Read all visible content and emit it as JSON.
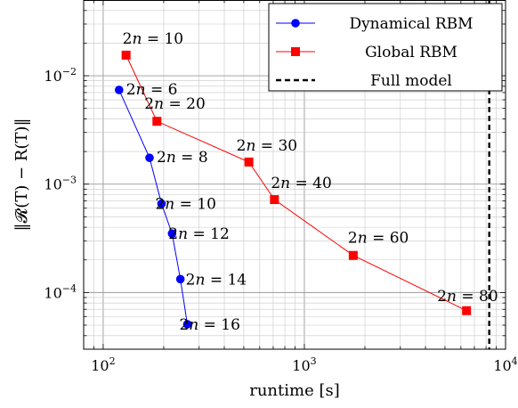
{
  "chart_data": {
    "type": "line",
    "x_scale": "log",
    "y_scale": "log",
    "xlim": [
      80,
      10000
    ],
    "ylim": [
      3e-05,
      0.05
    ],
    "grid": true,
    "legend_position": "top-right",
    "xlabel": "runtime [s]",
    "ylabel": "‖𝓡(T) − R(T)‖",
    "x_tick_labels": [
      "10^2",
      "10^3",
      "10^4"
    ],
    "y_tick_labels": [
      "10^-2",
      "10^-3",
      "10^-4"
    ],
    "series": [
      {
        "name": "Dynamical RBM",
        "color": "#0000ff",
        "marker": "circle",
        "points": [
          {
            "x": 120,
            "y": 0.0074,
            "label": "2n = 6"
          },
          {
            "x": 170,
            "y": 0.00175,
            "label": "2n = 8"
          },
          {
            "x": 195,
            "y": 0.00066,
            "label": "2n = 10"
          },
          {
            "x": 220,
            "y": 0.00035,
            "label": "2n = 12"
          },
          {
            "x": 242,
            "y": 0.000133,
            "label": "2n = 14"
          },
          {
            "x": 262,
            "y": 5.1e-05,
            "label": "2n = 16"
          }
        ]
      },
      {
        "name": "Global RBM",
        "color": "#ff0000",
        "marker": "square",
        "points": [
          {
            "x": 130,
            "y": 0.0155,
            "label": "2n = 10"
          },
          {
            "x": 185,
            "y": 0.0038,
            "label": "2n = 20"
          },
          {
            "x": 530,
            "y": 0.0016,
            "label": "2n = 30"
          },
          {
            "x": 710,
            "y": 0.00072,
            "label": "2n = 40"
          },
          {
            "x": 1750,
            "y": 0.00022,
            "label": "2n = 60"
          },
          {
            "x": 6400,
            "y": 6.8e-05,
            "label": "2n = 80"
          }
        ]
      },
      {
        "name": "Full model",
        "color": "#000000",
        "style": "dashed",
        "vertical_x": 8300
      }
    ]
  }
}
